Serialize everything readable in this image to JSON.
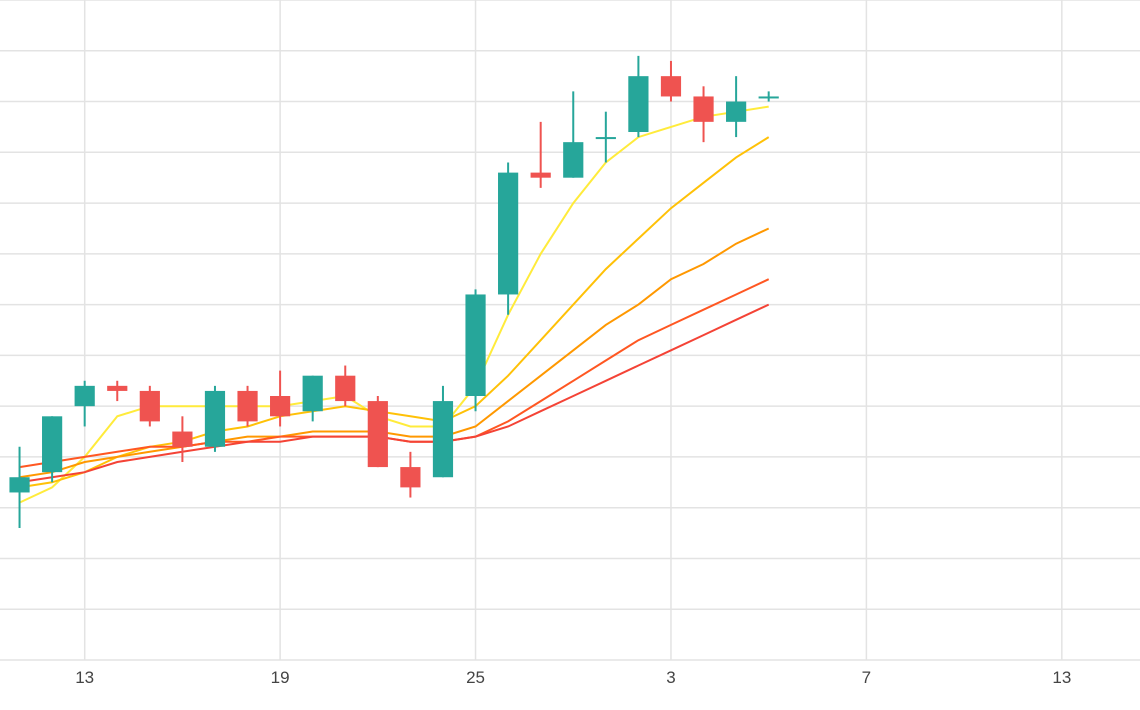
{
  "chart_data": {
    "type": "candlestick",
    "x_tick_labels": [
      "13",
      "19",
      "25",
      "3",
      "7",
      "13"
    ],
    "x_tick_positions": [
      2,
      8,
      14,
      20,
      26,
      32
    ],
    "x_range": [
      -0.6,
      34.4
    ],
    "y_range": [
      0,
      13
    ],
    "grid": true,
    "candles": [
      {
        "x": 0,
        "open": 3.3,
        "high": 4.2,
        "low": 2.6,
        "close": 3.6
      },
      {
        "x": 1,
        "open": 3.7,
        "high": 4.8,
        "low": 3.5,
        "close": 4.8
      },
      {
        "x": 2,
        "open": 5.0,
        "high": 5.5,
        "low": 4.6,
        "close": 5.4
      },
      {
        "x": 3,
        "open": 5.4,
        "high": 5.5,
        "low": 5.1,
        "close": 5.3
      },
      {
        "x": 4,
        "open": 5.3,
        "high": 5.4,
        "low": 4.6,
        "close": 4.7
      },
      {
        "x": 5,
        "open": 4.5,
        "high": 4.8,
        "low": 3.9,
        "close": 4.2
      },
      {
        "x": 6,
        "open": 4.2,
        "high": 5.4,
        "low": 4.1,
        "close": 5.3
      },
      {
        "x": 7,
        "open": 5.3,
        "high": 5.4,
        "low": 4.6,
        "close": 4.7
      },
      {
        "x": 8,
        "open": 5.2,
        "high": 5.7,
        "low": 4.6,
        "close": 4.8
      },
      {
        "x": 9,
        "open": 4.9,
        "high": 5.6,
        "low": 4.7,
        "close": 5.6
      },
      {
        "x": 10,
        "open": 5.6,
        "high": 5.8,
        "low": 5.0,
        "close": 5.1
      },
      {
        "x": 11,
        "open": 5.1,
        "high": 5.2,
        "low": 3.8,
        "close": 3.8
      },
      {
        "x": 12,
        "open": 3.8,
        "high": 4.1,
        "low": 3.2,
        "close": 3.4
      },
      {
        "x": 13,
        "open": 3.6,
        "high": 5.4,
        "low": 3.6,
        "close": 5.1
      },
      {
        "x": 14,
        "open": 5.2,
        "high": 7.3,
        "low": 4.9,
        "close": 7.2
      },
      {
        "x": 15,
        "open": 7.2,
        "high": 9.8,
        "low": 6.8,
        "close": 9.6
      },
      {
        "x": 16,
        "open": 9.6,
        "high": 10.6,
        "low": 9.3,
        "close": 9.5
      },
      {
        "x": 17,
        "open": 9.5,
        "high": 11.2,
        "low": 9.5,
        "close": 10.2
      },
      {
        "x": 18,
        "open": 10.3,
        "high": 10.8,
        "low": 9.8,
        "close": 10.3
      },
      {
        "x": 19,
        "open": 10.4,
        "high": 11.9,
        "low": 10.3,
        "close": 11.5
      },
      {
        "x": 20,
        "open": 11.5,
        "high": 11.8,
        "low": 11.0,
        "close": 11.1
      },
      {
        "x": 21,
        "open": 11.1,
        "high": 11.3,
        "low": 10.2,
        "close": 10.6
      },
      {
        "x": 22,
        "open": 10.6,
        "high": 11.5,
        "low": 10.3,
        "close": 11.0
      },
      {
        "x": 23,
        "open": 11.1,
        "high": 11.2,
        "low": 11.0,
        "close": 11.1
      }
    ],
    "colors": {
      "up": "#26a69a",
      "down": "#ef5350",
      "grid": "#e3e3e3",
      "ma": [
        "#ffeb3b",
        "#ffc107",
        "#ff9800",
        "#ff5722",
        "#f44336"
      ]
    },
    "moving_averages": [
      {
        "values": [
          3.1,
          3.4,
          4.0,
          4.8,
          5.0,
          5.0,
          5.0,
          5.0,
          5.0,
          5.1,
          5.2,
          4.8,
          4.6,
          4.6,
          5.4,
          6.8,
          8.0,
          9.0,
          9.8,
          10.3,
          10.5,
          10.7,
          10.8,
          10.9
        ]
      },
      {
        "values": [
          3.4,
          3.5,
          3.7,
          4.0,
          4.2,
          4.3,
          4.5,
          4.6,
          4.8,
          4.9,
          5.0,
          4.9,
          4.8,
          4.7,
          5.0,
          5.6,
          6.3,
          7.0,
          7.7,
          8.3,
          8.9,
          9.4,
          9.9,
          10.3
        ]
      },
      {
        "values": [
          3.6,
          3.7,
          3.9,
          4.0,
          4.1,
          4.2,
          4.3,
          4.4,
          4.4,
          4.5,
          4.5,
          4.5,
          4.4,
          4.4,
          4.6,
          5.1,
          5.6,
          6.1,
          6.6,
          7.0,
          7.5,
          7.8,
          8.2,
          8.5
        ]
      },
      {
        "values": [
          3.8,
          3.9,
          4.0,
          4.1,
          4.2,
          4.2,
          4.3,
          4.3,
          4.4,
          4.4,
          4.4,
          4.4,
          4.3,
          4.3,
          4.4,
          4.7,
          5.1,
          5.5,
          5.9,
          6.3,
          6.6,
          6.9,
          7.2,
          7.5
        ]
      },
      {
        "values": [
          3.5,
          3.6,
          3.7,
          3.9,
          4.0,
          4.1,
          4.2,
          4.3,
          4.3,
          4.4,
          4.4,
          4.4,
          4.3,
          4.3,
          4.4,
          4.6,
          4.9,
          5.2,
          5.5,
          5.8,
          6.1,
          6.4,
          6.7,
          7.0
        ]
      }
    ]
  }
}
